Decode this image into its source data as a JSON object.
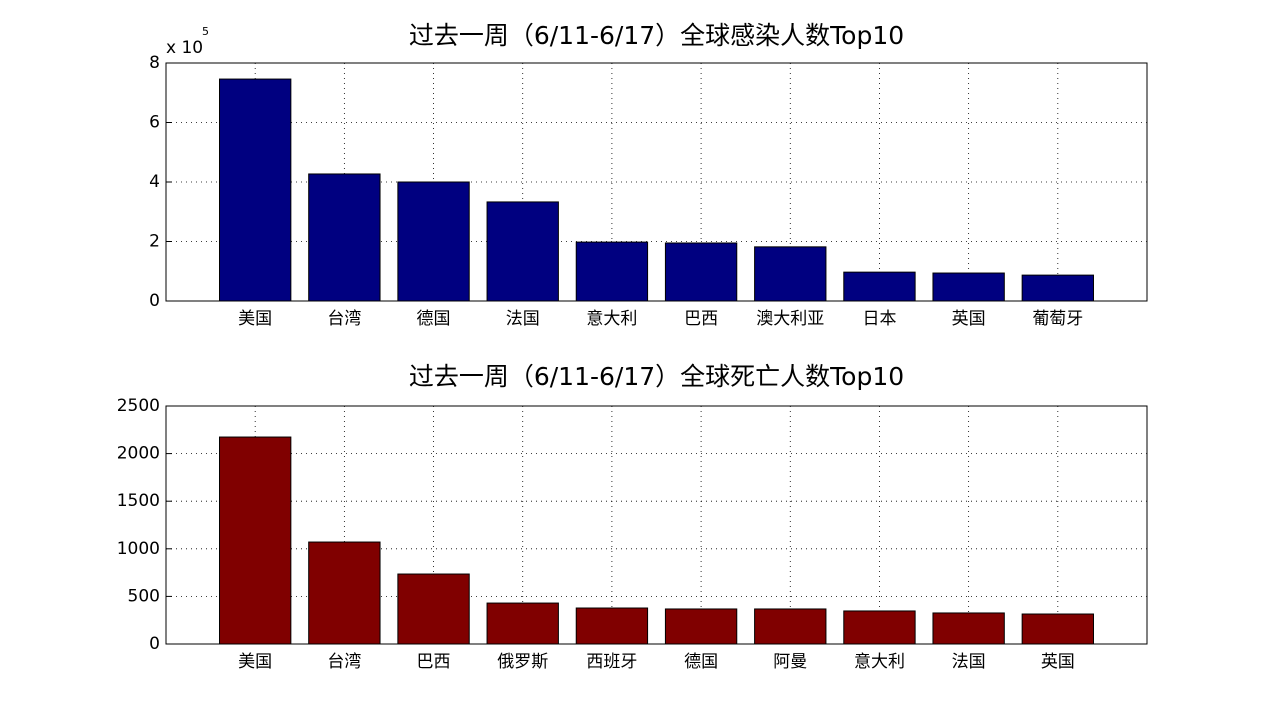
{
  "chart_data": [
    {
      "type": "bar",
      "title": "过去一周（6/11-6/17）全球感染人数Top10",
      "y_multiplier": "x 10",
      "y_exponent": "5",
      "categories": [
        "美国",
        "台湾",
        "德国",
        "法国",
        "意大利",
        "巴西",
        "澳大利亚",
        "日本",
        "英国",
        "葡萄牙"
      ],
      "values": [
        7.46,
        4.27,
        4.0,
        3.33,
        1.98,
        1.95,
        1.82,
        0.97,
        0.94,
        0.87
      ],
      "color": "#000080",
      "ylim": [
        0,
        8
      ],
      "yticks": [
        0,
        2,
        4,
        6,
        8
      ],
      "grid": true
    },
    {
      "type": "bar",
      "title": "过去一周（6/11-6/17）全球死亡人数Top10",
      "categories": [
        "美国",
        "台湾",
        "巴西",
        "俄罗斯",
        "西班牙",
        "德国",
        "阿曼",
        "意大利",
        "法国",
        "英国"
      ],
      "values": [
        2174,
        1071,
        735,
        430,
        378,
        368,
        368,
        347,
        326,
        315
      ],
      "color": "#800000",
      "ylim": [
        0,
        2500
      ],
      "yticks": [
        0,
        500,
        1000,
        1500,
        2000,
        2500
      ],
      "grid": true
    }
  ]
}
